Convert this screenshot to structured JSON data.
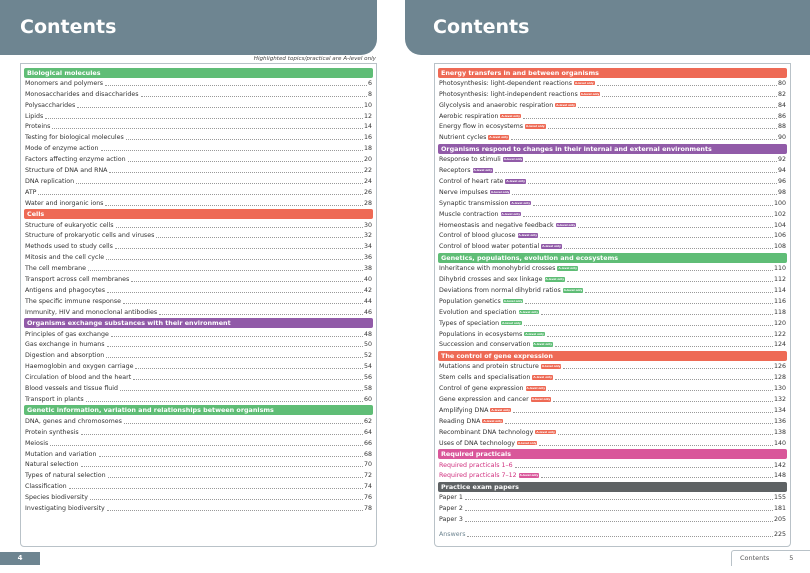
{
  "left_page": {
    "title": "Contents",
    "note": "Highlighted topics/practical are A-level only",
    "page_number": "4",
    "sections": [
      {
        "heading": "Biological molecules",
        "color": "#5fbd76",
        "items": [
          {
            "title": "Monomers and polymers",
            "page": "6"
          },
          {
            "title": "Monosaccharides and disaccharides",
            "page": "8"
          },
          {
            "title": "Polysaccharides",
            "page": "10"
          },
          {
            "title": "Lipids",
            "page": "12"
          },
          {
            "title": "Proteins",
            "page": "14"
          },
          {
            "title": "Testing for biological molecules",
            "page": "16"
          },
          {
            "title": "Mode of enzyme action",
            "page": "18"
          },
          {
            "title": "Factors affecting enzyme action",
            "page": "20"
          },
          {
            "title": "Structure of DNA and RNA",
            "page": "22"
          },
          {
            "title": "DNA replication",
            "page": "24"
          },
          {
            "title": "ATP",
            "page": "26"
          },
          {
            "title": "Water and inorganic ions",
            "page": "28"
          }
        ]
      },
      {
        "heading": "Cells",
        "color": "#ee6a55",
        "items": [
          {
            "title": "Structure of eukaryotic cells",
            "page": "30"
          },
          {
            "title": "Structure of prokaryotic cells and viruses",
            "page": "32"
          },
          {
            "title": "Methods used to study cells",
            "page": "34"
          },
          {
            "title": "Mitosis and the cell cycle",
            "page": "36"
          },
          {
            "title": "The cell membrane",
            "page": "38"
          },
          {
            "title": "Transport across cell membranes",
            "page": "40"
          },
          {
            "title": "Antigens and phagocytes",
            "page": "42"
          },
          {
            "title": "The specific immune response",
            "page": "44"
          },
          {
            "title": "Immunity, HIV and monoclonal antibodies",
            "page": "46"
          }
        ]
      },
      {
        "heading": "Organisms exchange substances with their environment",
        "color": "#915ba8",
        "items": [
          {
            "title": "Principles of gas exchange",
            "page": "48"
          },
          {
            "title": "Gas exchange in humans",
            "page": "50"
          },
          {
            "title": "Digestion and absorption",
            "page": "52"
          },
          {
            "title": "Haemoglobin and oxygen carriage",
            "page": "54"
          },
          {
            "title": "Circulation of blood and the heart",
            "page": "56"
          },
          {
            "title": "Blood vessels and tissue fluid",
            "page": "58"
          },
          {
            "title": "Transport in plants",
            "page": "60"
          }
        ]
      },
      {
        "heading": "Genetic information, variation and relationships between organisms",
        "color": "#5fbd76",
        "items": [
          {
            "title": "DNA, genes and chromosomes",
            "page": "62"
          },
          {
            "title": "Protein synthesis",
            "page": "64"
          },
          {
            "title": "Meiosis",
            "page": "66"
          },
          {
            "title": "Mutation and variation",
            "page": "68"
          },
          {
            "title": "Natural selection",
            "page": "70"
          },
          {
            "title": "Types of natural selection",
            "page": "72"
          },
          {
            "title": "Classification",
            "page": "74"
          },
          {
            "title": "Species biodiversity",
            "page": "76"
          },
          {
            "title": "Investigating biodiversity",
            "page": "78"
          }
        ]
      }
    ]
  },
  "right_page": {
    "title": "Contents",
    "footer_label": "Contents",
    "page_number": "5",
    "badge_label": "A-level only",
    "sections": [
      {
        "heading": "Energy transfers in and between organisms",
        "color": "#ee6a55",
        "items": [
          {
            "title": "Photosynthesis: light-dependent reactions",
            "page": "80",
            "badge": true
          },
          {
            "title": "Photosynthesis: light-independent reactions",
            "page": "82",
            "badge": true
          },
          {
            "title": "Glycolysis and anaerobic respiration",
            "page": "84",
            "badge": true
          },
          {
            "title": "Aerobic respiration",
            "page": "86",
            "badge": true
          },
          {
            "title": "Energy flow in ecosystems",
            "page": "88",
            "badge": true
          },
          {
            "title": "Nutrient cycles",
            "page": "90",
            "badge": true
          }
        ]
      },
      {
        "heading": "Organisms respond to changes in their internal and external environments",
        "color": "#915ba8",
        "items": [
          {
            "title": "Response to stimuli",
            "page": "92",
            "badge": true
          },
          {
            "title": "Receptors",
            "page": "94",
            "badge": true
          },
          {
            "title": "Control of heart rate",
            "page": "96",
            "badge": true
          },
          {
            "title": "Nerve impulses",
            "page": "98",
            "badge": true
          },
          {
            "title": "Synaptic transmission",
            "page": "100",
            "badge": true
          },
          {
            "title": "Muscle contraction",
            "page": "102",
            "badge": true
          },
          {
            "title": "Homeostasis and negative feedback",
            "page": "104",
            "badge": true
          },
          {
            "title": "Control of blood glucose",
            "page": "106",
            "badge": true
          },
          {
            "title": "Control of blood water potential",
            "page": "108",
            "badge": true
          }
        ]
      },
      {
        "heading": "Genetics, populations, evolution and ecosystems",
        "color": "#5fbd76",
        "items": [
          {
            "title": "Inheritance with monohybrid crosses",
            "page": "110",
            "badge": true
          },
          {
            "title": "Dihybrid crosses and sex linkage",
            "page": "112",
            "badge": true
          },
          {
            "title": "Deviations from normal dihybrid ratios",
            "page": "114",
            "badge": true
          },
          {
            "title": "Population genetics",
            "page": "116",
            "badge": true
          },
          {
            "title": "Evolution and speciation",
            "page": "118",
            "badge": true
          },
          {
            "title": "Types of speciation",
            "page": "120",
            "badge": true
          },
          {
            "title": "Populations in ecosystems",
            "page": "122",
            "badge": true
          },
          {
            "title": "Succession and conservation",
            "page": "124",
            "badge": true
          }
        ]
      },
      {
        "heading": "The control of gene expression",
        "color": "#ee6a55",
        "items": [
          {
            "title": "Mutations and protein structure",
            "page": "126",
            "badge": true
          },
          {
            "title": "Stem cells and specialisation",
            "page": "128",
            "badge": true
          },
          {
            "title": "Control of gene expression",
            "page": "130",
            "badge": true
          },
          {
            "title": "Gene expression and cancer",
            "page": "132",
            "badge": true
          },
          {
            "title": "Amplifying DNA",
            "page": "134",
            "badge": true
          },
          {
            "title": "Reading DNA",
            "page": "136",
            "badge": true
          },
          {
            "title": "Recombinant DNA technology",
            "page": "138",
            "badge": true
          },
          {
            "title": "Uses of DNA technology",
            "page": "140",
            "badge": true
          }
        ]
      },
      {
        "heading": "Required practicals",
        "color": "#d9579a",
        "text_color": "#d0307f",
        "items": [
          {
            "title": "Required practicals 1–6",
            "page": "142"
          },
          {
            "title": "Required practicals 7–12",
            "page": "148",
            "badge": true
          }
        ]
      },
      {
        "heading": "Practice exam papers",
        "color": "#5e6264",
        "items": [
          {
            "title": "Paper 1",
            "page": "155"
          },
          {
            "title": "Paper 2",
            "page": "181"
          },
          {
            "title": "Paper 3",
            "page": "205"
          }
        ]
      }
    ],
    "answers": {
      "title": "Answers",
      "page": "225",
      "color": "#6e8591"
    }
  }
}
